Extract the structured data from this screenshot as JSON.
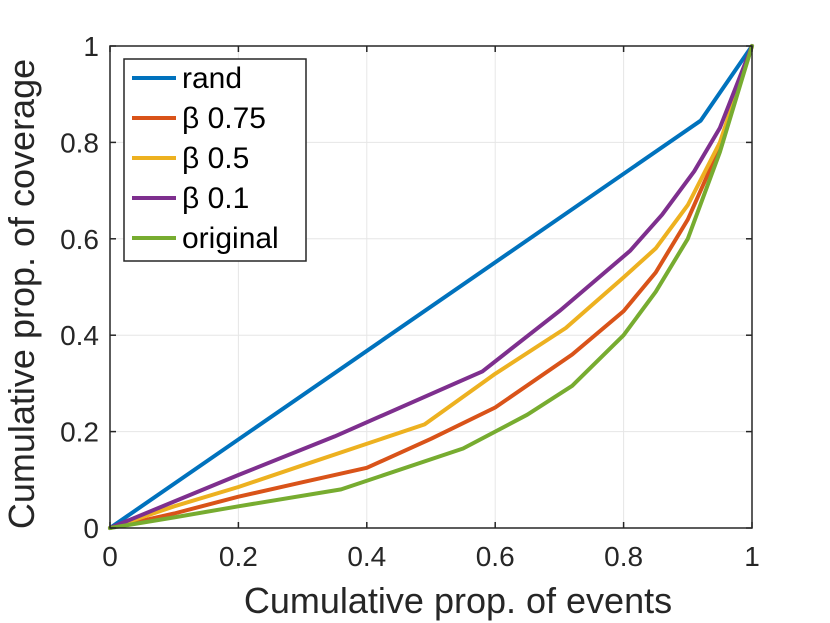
{
  "chart_data": {
    "type": "line",
    "title": "",
    "xlabel": "Cumulative prop. of events",
    "ylabel": "Cumulative prop. of coverage",
    "xlim": [
      0,
      1
    ],
    "ylim": [
      0,
      1
    ],
    "grid": true,
    "legend_position": "top-left",
    "x_ticks": [
      "0",
      "0.2",
      "0.4",
      "0.6",
      "0.8",
      "1"
    ],
    "y_ticks": [
      "0",
      "0.2",
      "0.4",
      "0.6",
      "0.8",
      "1"
    ],
    "series": [
      {
        "name": "rand",
        "color": "#0072BD",
        "x": [
          0,
          0.92,
          1
        ],
        "y": [
          0,
          0.845,
          1
        ]
      },
      {
        "name": "β 0.75",
        "color": "#D95319",
        "x": [
          0,
          0.1,
          0.2,
          0.3,
          0.4,
          0.5,
          0.6,
          0.72,
          0.8,
          0.85,
          0.9,
          0.95,
          1
        ],
        "y": [
          0,
          0.03,
          0.065,
          0.095,
          0.125,
          0.185,
          0.25,
          0.36,
          0.45,
          0.53,
          0.64,
          0.79,
          1
        ]
      },
      {
        "name": "β 0.5",
        "color": "#EDB120",
        "x": [
          0,
          0.1,
          0.2,
          0.3,
          0.49,
          0.6,
          0.71,
          0.8,
          0.85,
          0.9,
          0.95,
          1
        ],
        "y": [
          0,
          0.045,
          0.085,
          0.13,
          0.215,
          0.32,
          0.415,
          0.52,
          0.58,
          0.67,
          0.8,
          1
        ]
      },
      {
        "name": "β 0.1",
        "color": "#7E2F8E",
        "x": [
          0,
          0.1,
          0.2,
          0.35,
          0.58,
          0.7,
          0.81,
          0.86,
          0.91,
          0.95,
          1
        ],
        "y": [
          0,
          0.055,
          0.11,
          0.19,
          0.325,
          0.45,
          0.575,
          0.65,
          0.74,
          0.83,
          1
        ]
      },
      {
        "name": "original",
        "color": "#77AC30",
        "x": [
          0,
          0.1,
          0.2,
          0.36,
          0.55,
          0.65,
          0.72,
          0.8,
          0.85,
          0.9,
          0.95,
          1
        ],
        "y": [
          0,
          0.022,
          0.045,
          0.08,
          0.165,
          0.235,
          0.295,
          0.4,
          0.49,
          0.6,
          0.78,
          1
        ]
      }
    ]
  }
}
